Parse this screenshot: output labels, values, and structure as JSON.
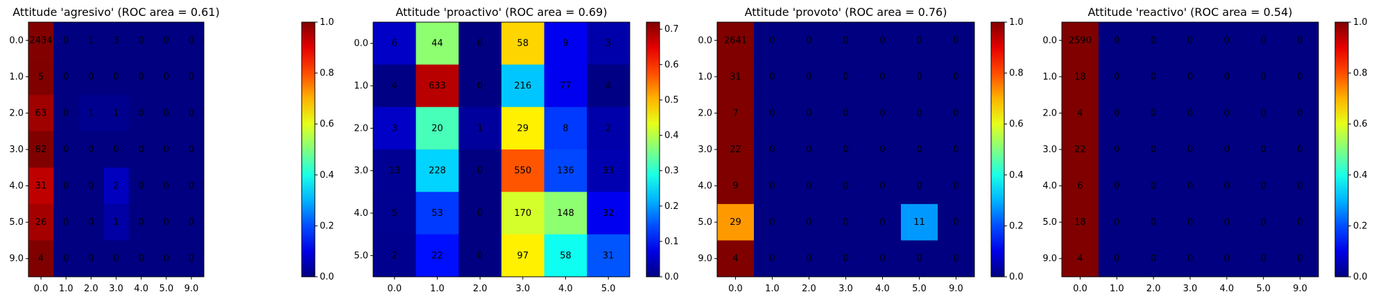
{
  "chart_data": [
    {
      "type": "heatmap",
      "title": "Attitude 'agresivo' (ROC area = 0.61)",
      "row_labels": [
        "0.0",
        "1.0",
        "2.0",
        "3.0",
        "4.0",
        "5.0",
        "9.0"
      ],
      "col_labels": [
        "0.0",
        "1.0",
        "2.0",
        "3.0",
        "4.0",
        "5.0",
        "9.0"
      ],
      "counts": [
        [
          2434,
          0,
          1,
          3,
          0,
          0,
          0
        ],
        [
          5,
          0,
          0,
          0,
          0,
          0,
          0
        ],
        [
          63,
          0,
          1,
          1,
          0,
          0,
          0
        ],
        [
          82,
          0,
          0,
          0,
          0,
          0,
          0
        ],
        [
          31,
          0,
          0,
          2,
          0,
          0,
          0
        ],
        [
          26,
          0,
          0,
          1,
          0,
          0,
          0
        ],
        [
          4,
          0,
          0,
          0,
          0,
          0,
          0
        ]
      ],
      "values": [
        [
          0.998,
          0,
          0.0004,
          0.0012,
          0,
          0,
          0
        ],
        [
          1.0,
          0,
          0,
          0,
          0,
          0,
          0
        ],
        [
          0.969,
          0,
          0.015,
          0.015,
          0,
          0,
          0
        ],
        [
          1.0,
          0,
          0,
          0,
          0,
          0,
          0
        ],
        [
          0.939,
          0,
          0,
          0.061,
          0,
          0,
          0
        ],
        [
          0.963,
          0,
          0,
          0.037,
          0,
          0,
          0
        ],
        [
          1.0,
          0,
          0,
          0,
          0,
          0,
          0
        ]
      ],
      "colorbar": {
        "min": 0.0,
        "max": 1.0,
        "ticks": [
          "0.0",
          "0.2",
          "0.4",
          "0.6",
          "0.8",
          "1.0"
        ]
      }
    },
    {
      "type": "heatmap",
      "title": "Attitude 'proactivo' (ROC area = 0.69)",
      "row_labels": [
        "0.0",
        "1.0",
        "2.0",
        "3.0",
        "4.0",
        "5.0"
      ],
      "col_labels": [
        "0.0",
        "1.0",
        "2.0",
        "3.0",
        "4.0",
        "5.0"
      ],
      "counts": [
        [
          6,
          44,
          0,
          58,
          9,
          3
        ],
        [
          4,
          633,
          0,
          216,
          77,
          4
        ],
        [
          3,
          20,
          1,
          29,
          8,
          2
        ],
        [
          13,
          228,
          0,
          550,
          136,
          33
        ],
        [
          5,
          53,
          0,
          170,
          148,
          32
        ],
        [
          2,
          22,
          0,
          97,
          58,
          31
        ]
      ],
      "values": [
        [
          0.05,
          0.37,
          0,
          0.48,
          0.08,
          0.03
        ],
        [
          0.004,
          0.68,
          0,
          0.23,
          0.08,
          0.004
        ],
        [
          0.05,
          0.32,
          0.02,
          0.46,
          0.13,
          0.03
        ],
        [
          0.014,
          0.24,
          0,
          0.57,
          0.14,
          0.034
        ],
        [
          0.012,
          0.13,
          0,
          0.42,
          0.37,
          0.08
        ],
        [
          0.01,
          0.1,
          0,
          0.46,
          0.28,
          0.15
        ]
      ],
      "colorbar": {
        "min": 0.0,
        "max": 0.72,
        "ticks": [
          "0.0",
          "0.1",
          "0.2",
          "0.3",
          "0.4",
          "0.5",
          "0.6",
          "0.7"
        ]
      }
    },
    {
      "type": "heatmap",
      "title": "Attitude 'provoto' (ROC area = 0.76)",
      "row_labels": [
        "0.0",
        "1.0",
        "2.0",
        "3.0",
        "4.0",
        "5.0",
        "9.0"
      ],
      "col_labels": [
        "0.0",
        "1.0",
        "2.0",
        "3.0",
        "4.0",
        "5.0",
        "9.0"
      ],
      "counts": [
        [
          2641,
          0,
          0,
          0,
          0,
          0,
          0
        ],
        [
          31,
          0,
          0,
          0,
          0,
          0,
          0
        ],
        [
          7,
          0,
          0,
          0,
          0,
          0,
          0
        ],
        [
          22,
          0,
          0,
          0,
          0,
          0,
          0
        ],
        [
          9,
          0,
          0,
          0,
          0,
          0,
          0
        ],
        [
          29,
          0,
          0,
          0,
          0,
          11,
          0
        ],
        [
          4,
          0,
          0,
          0,
          0,
          0,
          0
        ]
      ],
      "values": [
        [
          1.0,
          0,
          0,
          0,
          0,
          0,
          0
        ],
        [
          1.0,
          0,
          0,
          0,
          0,
          0,
          0
        ],
        [
          1.0,
          0,
          0,
          0,
          0,
          0,
          0
        ],
        [
          1.0,
          0,
          0,
          0,
          0,
          0,
          0
        ],
        [
          1.0,
          0,
          0,
          0,
          0,
          0,
          0
        ],
        [
          0.725,
          0,
          0,
          0,
          0,
          0.275,
          0
        ],
        [
          1.0,
          0,
          0,
          0,
          0,
          0,
          0
        ]
      ],
      "colorbar": {
        "min": 0.0,
        "max": 1.0,
        "ticks": [
          "0.0",
          "0.2",
          "0.4",
          "0.6",
          "0.8",
          "1.0"
        ]
      }
    },
    {
      "type": "heatmap",
      "title": "Attitude 'reactivo' (ROC area = 0.54)",
      "row_labels": [
        "0.0",
        "1.0",
        "2.0",
        "3.0",
        "4.0",
        "5.0",
        "9.0"
      ],
      "col_labels": [
        "0.0",
        "1.0",
        "2.0",
        "3.0",
        "4.0",
        "5.0",
        "9.0"
      ],
      "counts": [
        [
          2590,
          0,
          0,
          0,
          0,
          0,
          0
        ],
        [
          18,
          0,
          0,
          0,
          0,
          0,
          0
        ],
        [
          4,
          0,
          0,
          0,
          0,
          0,
          0
        ],
        [
          22,
          0,
          0,
          0,
          0,
          0,
          0
        ],
        [
          6,
          0,
          0,
          0,
          0,
          0,
          0
        ],
        [
          18,
          0,
          0,
          0,
          0,
          0,
          0
        ],
        [
          4,
          0,
          0,
          0,
          0,
          0,
          0
        ]
      ],
      "values": [
        [
          1.0,
          0,
          0,
          0,
          0,
          0,
          0
        ],
        [
          1.0,
          0,
          0,
          0,
          0,
          0,
          0
        ],
        [
          1.0,
          0,
          0,
          0,
          0,
          0,
          0
        ],
        [
          1.0,
          0,
          0,
          0,
          0,
          0,
          0
        ],
        [
          1.0,
          0,
          0,
          0,
          0,
          0,
          0
        ],
        [
          1.0,
          0,
          0,
          0,
          0,
          0,
          0
        ],
        [
          1.0,
          0,
          0,
          0,
          0,
          0,
          0
        ]
      ],
      "colorbar": {
        "min": 0.0,
        "max": 1.0,
        "ticks": [
          "0.0",
          "0.2",
          "0.4",
          "0.6",
          "0.8",
          "1.0"
        ]
      }
    }
  ]
}
